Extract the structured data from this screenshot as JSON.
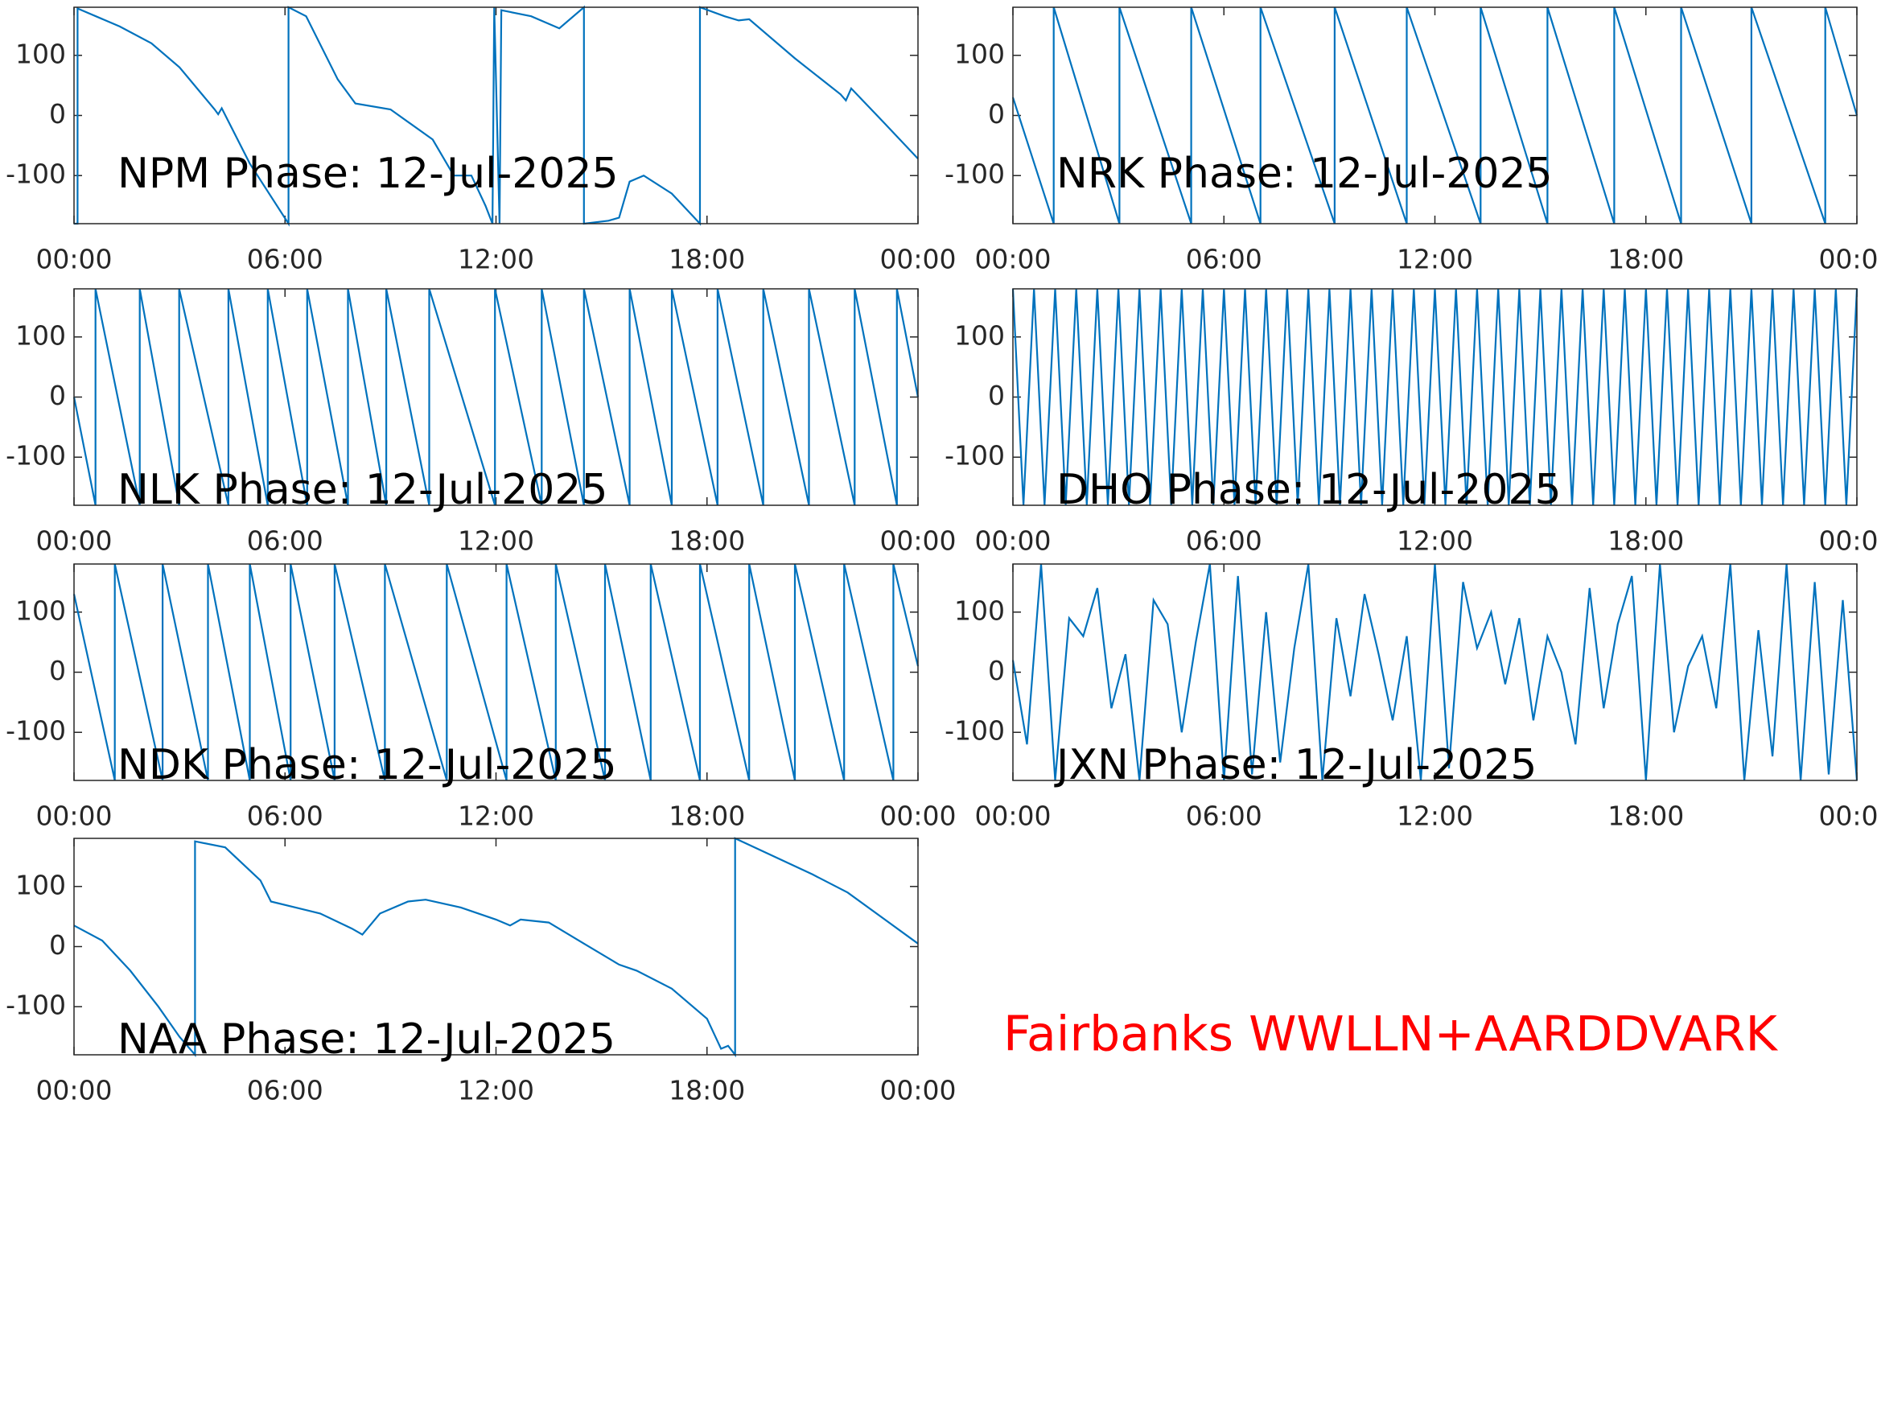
{
  "chart_data": [
    {
      "type": "line",
      "title": "NPM Phase: 12-Jul-2025",
      "color": "#0072BD",
      "x": [
        0,
        0.1,
        0.1,
        1.3,
        2.2,
        3.0,
        4.0,
        4.1,
        4.2,
        5.0,
        6.1,
        6.1,
        6.6,
        7.5,
        8.0,
        9.0,
        10.2,
        10.8,
        11.3,
        11.7,
        11.9,
        11.95,
        12.1,
        12.15,
        13.0,
        13.8,
        14.5,
        14.5,
        15.2,
        15.5,
        15.8,
        16.2,
        17.0,
        17.8,
        17.8,
        18.5,
        18.9,
        19.2,
        20.5,
        21.8,
        21.95,
        22.1,
        23.0,
        24.0
      ],
      "values": [
        -180,
        -180,
        178,
        148,
        120,
        80,
        10,
        2,
        12,
        -80,
        -180,
        180,
        165,
        60,
        20,
        10,
        -40,
        -100,
        -100,
        -150,
        -180,
        180,
        -180,
        175,
        165,
        145,
        180,
        -180,
        -175,
        -170,
        -110,
        -100,
        -130,
        -180,
        180,
        165,
        158,
        160,
        95,
        35,
        25,
        45,
        -10,
        -72
      ],
      "xlim": [
        0,
        24
      ],
      "ylim": [
        -180,
        180
      ],
      "xticks": [
        {
          "value": 0,
          "label": "00:00"
        },
        {
          "value": 6,
          "label": "06:00"
        },
        {
          "value": 12,
          "label": "12:00"
        },
        {
          "value": 18,
          "label": "18:00"
        },
        {
          "value": 24,
          "label": "00:00"
        }
      ],
      "yticks": [
        -100,
        0,
        100
      ]
    },
    {
      "type": "line",
      "title": "NRK Phase: 12-Jul-2025",
      "color": "#0072BD",
      "x": [
        0,
        1.16,
        1.16,
        3.03,
        3.03,
        5.07,
        5.07,
        7.04,
        7.04,
        9.15,
        9.15,
        11.2,
        11.2,
        13.3,
        13.3,
        15.2,
        15.2,
        17.1,
        17.1,
        19.0,
        19.0,
        21.0,
        21.0,
        23.1,
        23.1,
        24
      ],
      "values": [
        30,
        -180,
        180,
        -180,
        180,
        -180,
        180,
        -180,
        180,
        -180,
        180,
        -180,
        180,
        -180,
        180,
        -180,
        180,
        -180,
        180,
        -180,
        180,
        -180,
        180,
        -180,
        180,
        0
      ],
      "xlim": [
        0,
        24
      ],
      "ylim": [
        -180,
        180
      ],
      "xticks": [
        {
          "value": 0,
          "label": "00:00"
        },
        {
          "value": 6,
          "label": "06:00"
        },
        {
          "value": 12,
          "label": "12:00"
        },
        {
          "value": 18,
          "label": "18:00"
        },
        {
          "value": 24,
          "label": "00:00"
        }
      ],
      "yticks": [
        -100,
        0,
        100
      ]
    },
    {
      "type": "line",
      "title": "NLK Phase: 12-Jul-2025",
      "color": "#0072BD",
      "x": [
        0,
        0.61,
        0.61,
        1.87,
        1.87,
        2.99,
        2.99,
        4.39,
        4.39,
        5.51,
        5.51,
        6.63,
        6.63,
        7.79,
        7.79,
        8.88,
        8.88,
        10.1,
        10.1,
        11.97,
        11.97,
        13.3,
        13.3,
        14.5,
        14.5,
        15.8,
        15.8,
        17.0,
        17.0,
        18.3,
        18.3,
        19.6,
        19.6,
        20.9,
        20.9,
        22.2,
        22.2,
        23.4,
        23.4,
        24
      ],
      "values": [
        0,
        -180,
        180,
        -180,
        180,
        -180,
        180,
        -180,
        180,
        -180,
        180,
        -180,
        180,
        -180,
        180,
        -180,
        180,
        -180,
        180,
        -180,
        180,
        -180,
        180,
        -180,
        180,
        -180,
        180,
        -180,
        180,
        -180,
        180,
        -180,
        180,
        -180,
        180,
        -180,
        180,
        -180,
        180,
        0
      ],
      "xlim": [
        0,
        24
      ],
      "ylim": [
        -180,
        180
      ],
      "xticks": [
        {
          "value": 0,
          "label": "00:00"
        },
        {
          "value": 6,
          "label": "06:00"
        },
        {
          "value": 12,
          "label": "12:00"
        },
        {
          "value": 18,
          "label": "18:00"
        },
        {
          "value": 24,
          "label": "00:00"
        }
      ],
      "yticks": [
        -100,
        0,
        100
      ]
    },
    {
      "type": "line",
      "title": "DHO Phase: 12-Jul-2025",
      "color": "#0072BD",
      "x": [
        0,
        0.3,
        0.6,
        0.9,
        1.2,
        1.5,
        1.8,
        2.1,
        2.4,
        2.7,
        3.0,
        3.3,
        3.6,
        3.9,
        4.2,
        4.5,
        4.8,
        5.1,
        5.4,
        5.7,
        6.0,
        6.3,
        6.6,
        6.9,
        7.2,
        7.5,
        7.8,
        8.1,
        8.4,
        8.7,
        9.0,
        9.3,
        9.6,
        9.9,
        10.2,
        10.5,
        10.8,
        11.1,
        11.4,
        11.7,
        12.0,
        12.3,
        12.6,
        12.9,
        13.2,
        13.5,
        13.8,
        14.1,
        14.4,
        14.7,
        15.0,
        15.3,
        15.6,
        15.9,
        16.2,
        16.5,
        16.8,
        17.1,
        17.4,
        17.7,
        18.0,
        18.3,
        18.6,
        18.9,
        19.2,
        19.5,
        19.8,
        20.1,
        20.4,
        20.7,
        21.0,
        21.3,
        21.6,
        21.9,
        22.2,
        22.5,
        22.8,
        23.1,
        23.4,
        23.7,
        24.0
      ],
      "values": [
        180,
        -180,
        180,
        -180,
        180,
        -180,
        180,
        -180,
        180,
        -180,
        180,
        -180,
        180,
        -180,
        180,
        -180,
        180,
        -180,
        180,
        -180,
        180,
        -180,
        180,
        -180,
        180,
        -180,
        180,
        -180,
        180,
        -180,
        180,
        -180,
        180,
        -180,
        180,
        -180,
        180,
        -180,
        180,
        -180,
        180,
        -180,
        180,
        -180,
        180,
        -180,
        180,
        -180,
        180,
        -180,
        180,
        -180,
        180,
        -180,
        180,
        -180,
        180,
        -180,
        180,
        -180,
        180,
        -180,
        180,
        -180,
        180,
        -180,
        180,
        -180,
        180,
        -180,
        180,
        -180,
        180,
        -180,
        180,
        -180,
        180,
        -180,
        180,
        -180,
        180
      ],
      "xlim": [
        0,
        24
      ],
      "ylim": [
        -180,
        180
      ],
      "xticks": [
        {
          "value": 0,
          "label": "00:00"
        },
        {
          "value": 6,
          "label": "06:00"
        },
        {
          "value": 12,
          "label": "12:00"
        },
        {
          "value": 18,
          "label": "18:00"
        },
        {
          "value": 24,
          "label": "00:00"
        }
      ],
      "yticks": [
        -100,
        0,
        100
      ]
    },
    {
      "type": "line",
      "title": "NDK Phase: 12-Jul-2025",
      "color": "#0072BD",
      "x": [
        0,
        1.16,
        1.16,
        2.52,
        2.52,
        3.81,
        3.81,
        5.0,
        5.0,
        6.16,
        6.16,
        7.41,
        7.41,
        8.84,
        8.84,
        10.6,
        10.6,
        12.3,
        12.3,
        13.7,
        13.7,
        15.1,
        15.1,
        16.4,
        16.4,
        17.8,
        17.8,
        19.2,
        19.2,
        20.5,
        20.5,
        21.9,
        21.9,
        23.3,
        23.3,
        24
      ],
      "values": [
        130,
        -180,
        180,
        -180,
        180,
        -180,
        180,
        -180,
        180,
        -180,
        180,
        -180,
        180,
        -180,
        180,
        -180,
        180,
        -180,
        180,
        -180,
        180,
        -180,
        180,
        -180,
        180,
        -180,
        180,
        -180,
        180,
        -180,
        180,
        -180,
        180,
        -180,
        180,
        10
      ],
      "xlim": [
        0,
        24
      ],
      "ylim": [
        -180,
        180
      ],
      "xticks": [
        {
          "value": 0,
          "label": "00:00"
        },
        {
          "value": 6,
          "label": "06:00"
        },
        {
          "value": 12,
          "label": "12:00"
        },
        {
          "value": 18,
          "label": "18:00"
        },
        {
          "value": 24,
          "label": "00:00"
        }
      ],
      "yticks": [
        -100,
        0,
        100
      ]
    },
    {
      "type": "line",
      "title": "JXN Phase: 12-Jul-2025",
      "color": "#0072BD",
      "x": [
        0,
        0.4,
        0.8,
        1.2,
        1.6,
        2.0,
        2.4,
        2.8,
        3.2,
        3.6,
        4.0,
        4.4,
        4.8,
        5.2,
        5.6,
        6.0,
        6.4,
        6.8,
        7.2,
        7.6,
        8.0,
        8.4,
        8.8,
        9.2,
        9.6,
        10.0,
        10.4,
        10.8,
        11.2,
        11.6,
        12.0,
        12.4,
        12.8,
        13.2,
        13.6,
        14.0,
        14.4,
        14.8,
        15.2,
        15.6,
        16.0,
        16.4,
        16.8,
        17.2,
        17.6,
        18.0,
        18.4,
        18.8,
        19.2,
        19.6,
        20.0,
        20.4,
        20.8,
        21.2,
        21.6,
        22.0,
        22.4,
        22.8,
        23.2,
        23.6,
        24.0
      ],
      "values": [
        20,
        -120,
        180,
        -180,
        90,
        60,
        140,
        -60,
        30,
        -180,
        120,
        80,
        -100,
        50,
        180,
        -180,
        160,
        -170,
        100,
        -150,
        40,
        180,
        -180,
        90,
        -40,
        130,
        30,
        -80,
        60,
        -180,
        180,
        -160,
        150,
        40,
        100,
        -20,
        90,
        -80,
        60,
        0,
        -120,
        140,
        -60,
        80,
        160,
        -180,
        180,
        -100,
        10,
        60,
        -60,
        180,
        -180,
        70,
        -140,
        180,
        -180,
        150,
        -170,
        120,
        -180
      ],
      "xlim": [
        0,
        24
      ],
      "ylim": [
        -180,
        180
      ],
      "xticks": [
        {
          "value": 0,
          "label": "00:00"
        },
        {
          "value": 6,
          "label": "06:00"
        },
        {
          "value": 12,
          "label": "12:00"
        },
        {
          "value": 18,
          "label": "18:00"
        },
        {
          "value": 24,
          "label": "00:00"
        }
      ],
      "yticks": [
        -100,
        0,
        100
      ]
    },
    {
      "type": "line",
      "title": "NAA Phase: 12-Jul-2025",
      "color": "#0072BD",
      "x": [
        0,
        0.8,
        1.6,
        2.4,
        3.0,
        3.44,
        3.44,
        4.3,
        5.3,
        5.6,
        6.3,
        7.0,
        7.9,
        8.2,
        8.7,
        9.5,
        10.0,
        11.0,
        12.0,
        12.4,
        12.7,
        13.5,
        14.5,
        15.5,
        16.0,
        17.0,
        18.0,
        18.4,
        18.6,
        18.8,
        18.8,
        21.0,
        22.0,
        24.0
      ],
      "values": [
        35,
        10,
        -40,
        -100,
        -150,
        -180,
        175,
        165,
        110,
        75,
        65,
        55,
        30,
        20,
        55,
        75,
        78,
        65,
        45,
        35,
        45,
        40,
        5,
        -30,
        -40,
        -70,
        -120,
        -170,
        -165,
        -180,
        180,
        120,
        90,
        5
      ],
      "xlim": [
        0,
        24
      ],
      "ylim": [
        -180,
        180
      ],
      "xticks": [
        {
          "value": 0,
          "label": "00:00"
        },
        {
          "value": 6,
          "label": "06:00"
        },
        {
          "value": 12,
          "label": "12:00"
        },
        {
          "value": 18,
          "label": "18:00"
        },
        {
          "value": 24,
          "label": "00:00"
        }
      ],
      "yticks": [
        -100,
        0,
        100
      ]
    }
  ],
  "annotation": "Fairbanks WWLLN+AARDDVARK"
}
